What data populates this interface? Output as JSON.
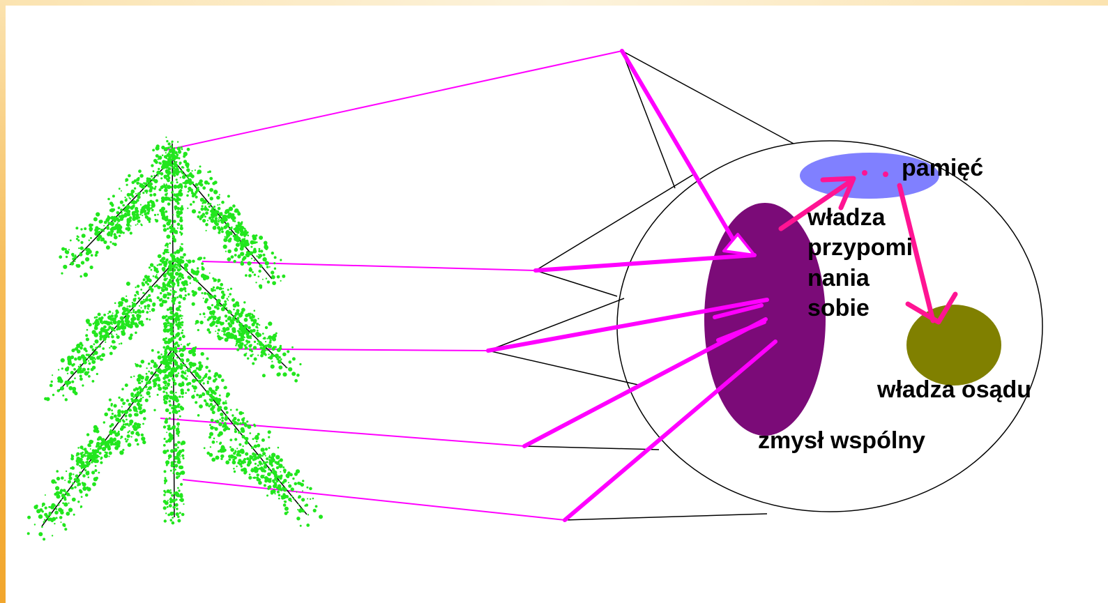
{
  "labels": {
    "memory": "pamięć",
    "recollection_line1": "władza",
    "recollection_line2": "przypomi",
    "recollection_line3": "nania",
    "recollection_line4": "sobie",
    "judgment": "władza osądu",
    "common_sense": "zmysł wspólny"
  },
  "colors": {
    "tree_foliage": "#22e61e",
    "projection_line": "#ff00ff",
    "arrow": "#ff1493",
    "common_sense_fill": "#7b0b78",
    "memory_fill": "#8080ff",
    "judgment_fill": "#808000",
    "outline": "#000000",
    "frame": "#f6bd59"
  },
  "icons": {
    "tree": "spruce-tree-icon"
  }
}
